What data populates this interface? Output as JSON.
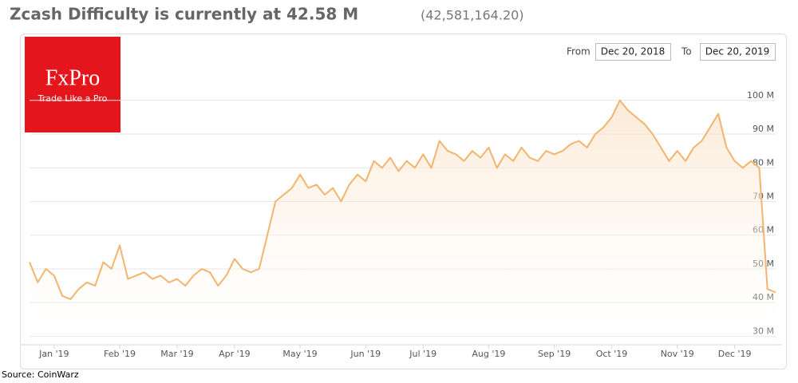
{
  "chart_data": {
    "type": "area-line",
    "title": "Zcash Difficulty is currently at 42.58 M",
    "subtitle": "(42,581,164.20)",
    "logo": "FxPro",
    "logo_tagline": "Trade Like a Pro",
    "from_label": "From",
    "from_date": "Dec 20, 2018",
    "to_label": "To",
    "to_date": "Dec 20, 2019",
    "source": "Source: CoinWarz",
    "color": "#f2b46e",
    "grid": true,
    "ylim": [
      27.5,
      108
    ],
    "yticks": [
      {
        "value": 30,
        "label": "30 M"
      },
      {
        "value": 40,
        "label": "40 M"
      },
      {
        "value": 50,
        "label": "50 M"
      },
      {
        "value": 60,
        "label": "60 M"
      },
      {
        "value": 70,
        "label": "70 M"
      },
      {
        "value": 80,
        "label": "80 M"
      },
      {
        "value": 90,
        "label": "90 M"
      },
      {
        "value": 100,
        "label": "100 M"
      }
    ],
    "categories": [
      null,
      null,
      null,
      "Jan '19",
      null,
      null,
      null,
      null,
      null,
      null,
      null,
      "Feb '19",
      null,
      null,
      null,
      null,
      null,
      null,
      "Mar '19",
      null,
      null,
      null,
      null,
      null,
      null,
      "Apr '19",
      null,
      null,
      null,
      null,
      null,
      null,
      null,
      "May '19",
      null,
      null,
      null,
      null,
      null,
      null,
      null,
      "Jun '19",
      null,
      null,
      null,
      null,
      null,
      null,
      "Jul '19",
      null,
      null,
      null,
      null,
      null,
      null,
      null,
      "Aug '19",
      null,
      null,
      null,
      null,
      null,
      null,
      null,
      "Sep '19",
      null,
      null,
      null,
      null,
      null,
      null,
      "Oct '19",
      null,
      null,
      null,
      null,
      null,
      null,
      null,
      "Nov '19",
      null,
      null,
      null,
      null,
      null,
      null,
      "Dec '19",
      null,
      null,
      null,
      null,
      null
    ],
    "values": [
      52,
      46,
      50,
      48,
      42,
      41,
      44,
      46,
      45,
      52,
      50,
      57,
      47,
      48,
      49,
      47,
      48,
      46,
      47,
      45,
      48,
      50,
      49,
      45,
      48,
      53,
      50,
      49,
      50,
      60,
      70,
      72,
      74,
      78,
      74,
      75,
      72,
      74,
      70,
      75,
      78,
      76,
      82,
      80,
      83,
      79,
      82,
      80,
      84,
      80,
      88,
      85,
      84,
      82,
      85,
      83,
      86,
      80,
      84,
      82,
      86,
      83,
      82,
      85,
      84,
      85,
      87,
      88,
      86,
      90,
      92,
      95,
      100,
      97,
      95,
      93,
      90,
      86,
      82,
      85,
      82,
      86,
      88,
      92,
      96,
      86,
      82,
      80,
      82,
      80,
      44,
      43
    ]
  }
}
